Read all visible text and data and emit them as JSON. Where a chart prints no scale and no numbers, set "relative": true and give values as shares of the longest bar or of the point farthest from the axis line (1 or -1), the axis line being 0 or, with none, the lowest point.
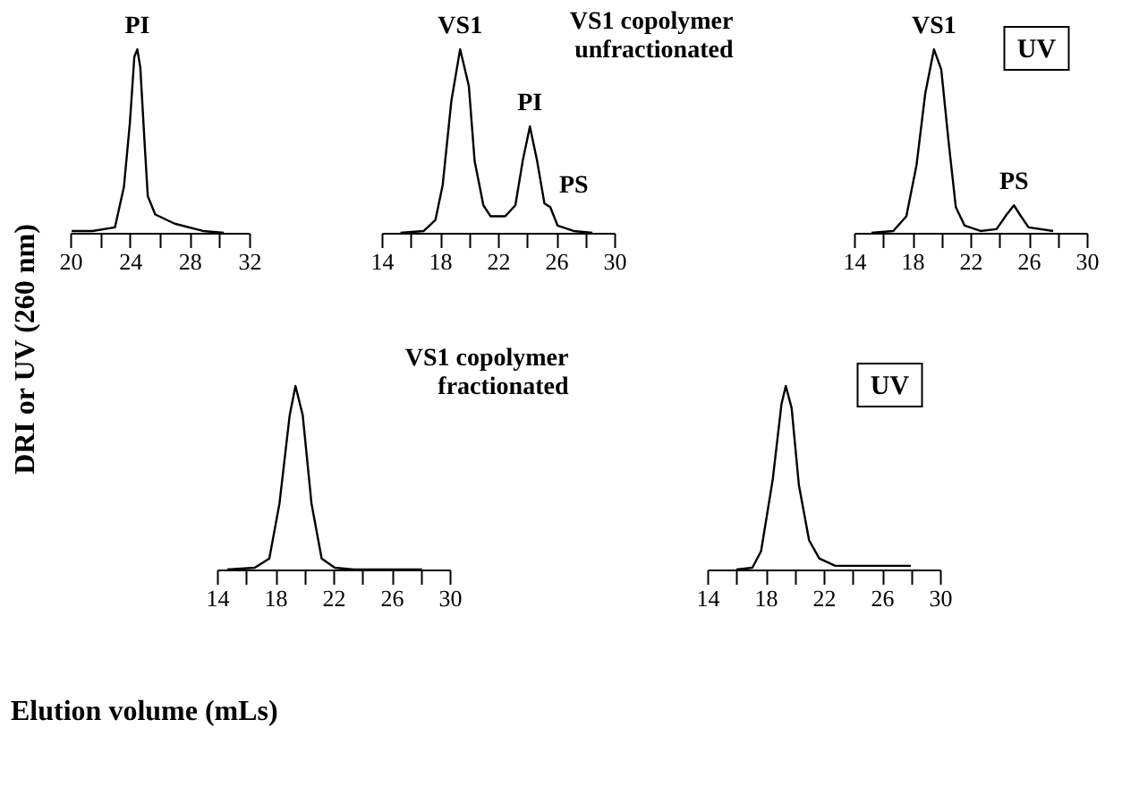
{
  "chart_data": [
    {
      "type": "line",
      "relative": true,
      "tick_labels": "x",
      "ylabel": "DRI or UV (260 nm)",
      "xlabel": "Elution volume (mLs)",
      "xlim": [
        20,
        32
      ],
      "xticks": [
        20,
        {
          "value": 22,
          "label": null
        },
        24,
        {
          "value": 26,
          "label": null
        },
        28,
        {
          "value": 30,
          "label": null
        },
        32
      ],
      "x": [
        20.1,
        21.5,
        23.0,
        23.6,
        24.0,
        24.3,
        24.5,
        24.7,
        25.0,
        25.2,
        25.7,
        27.0,
        28.9,
        30.3
      ],
      "values": [
        0.01,
        0.01,
        0.03,
        0.25,
        0.6,
        0.96,
        1,
        0.9,
        0.47,
        0.2,
        0.1,
        0.05,
        0.01,
        0
      ],
      "annotations": [
        {
          "text": "PI",
          "x": 24.5,
          "y": 1
        }
      ]
    },
    {
      "type": "line",
      "relative": true,
      "tick_labels": "x",
      "title": "VS1 copolymer unfractionated",
      "xlim": [
        14,
        30
      ],
      "xticks": [
        14,
        {
          "value": 16,
          "label": null
        },
        18,
        {
          "value": 20,
          "label": null
        },
        22,
        {
          "value": 24,
          "label": null
        },
        26,
        {
          "value": 28,
          "label": null
        },
        30
      ],
      "x": [
        15.3,
        16.9,
        17.7,
        18.2,
        18.8,
        19.4,
        20.0,
        20.4,
        21.0,
        21.5,
        22.5,
        23.2,
        23.7,
        24.2,
        24.7,
        25.2,
        25.6,
        26.1,
        27.2,
        28.5
      ],
      "values": [
        0,
        0.01,
        0.07,
        0.26,
        0.72,
        1,
        0.8,
        0.39,
        0.15,
        0.09,
        0.09,
        0.15,
        0.39,
        0.58,
        0.39,
        0.16,
        0.14,
        0.04,
        0.01,
        0
      ],
      "annotations": [
        {
          "text": "VS1",
          "x": 19.4,
          "y": 1
        },
        {
          "text": "PI",
          "x": 24.2,
          "y": 0.58
        },
        {
          "text": "PS",
          "x": 25.6,
          "y": 0.14
        }
      ]
    },
    {
      "type": "line",
      "relative": true,
      "tick_labels": "x",
      "xlim": [
        14,
        30
      ],
      "xticks": [
        14,
        {
          "value": 16,
          "label": null
        },
        18,
        {
          "value": 20,
          "label": null
        },
        22,
        {
          "value": 24,
          "label": null
        },
        26,
        {
          "value": 28,
          "label": null
        },
        30
      ],
      "x": [
        15.2,
        16.7,
        17.6,
        18.3,
        18.9,
        19.5,
        20.0,
        20.5,
        21.0,
        21.6,
        22.7,
        23.8,
        24.5,
        25.0,
        25.4,
        26.0,
        27.7
      ],
      "values": [
        0,
        0.01,
        0.09,
        0.37,
        0.76,
        1,
        0.89,
        0.5,
        0.14,
        0.04,
        0.01,
        0.02,
        0.1,
        0.15,
        0.1,
        0.03,
        0.01
      ],
      "annotations": [
        {
          "text": "VS1",
          "x": 19.5,
          "y": 1
        },
        {
          "text": "PS",
          "x": 25.0,
          "y": 0.15
        },
        "UV"
      ]
    },
    {
      "type": "line",
      "relative": true,
      "tick_labels": "x",
      "title": "VS1 copolymer fractionated",
      "xlim": [
        14,
        30
      ],
      "xticks": [
        14,
        {
          "value": 16,
          "label": null
        },
        18,
        {
          "value": 20,
          "label": null
        },
        22,
        {
          "value": 24,
          "label": null
        },
        26,
        {
          "value": 28,
          "label": null
        },
        30
      ],
      "x": [
        14.7,
        16.6,
        17.6,
        18.3,
        19.0,
        19.4,
        19.9,
        20.5,
        21.2,
        22.1,
        23.4,
        28.1
      ],
      "values": [
        0,
        0.01,
        0.06,
        0.36,
        0.84,
        1,
        0.84,
        0.36,
        0.06,
        0.01,
        0,
        0
      ]
    },
    {
      "type": "line",
      "relative": true,
      "tick_labels": "x",
      "xlim": [
        14,
        30
      ],
      "xticks": [
        14,
        {
          "value": 16,
          "label": null
        },
        18,
        {
          "value": 20,
          "label": null
        },
        22,
        {
          "value": 24,
          "label": null
        },
        26,
        {
          "value": 28,
          "label": null
        },
        30
      ],
      "x": [
        16.0,
        17.1,
        17.7,
        18.5,
        19.1,
        19.4,
        19.8,
        20.3,
        21.0,
        21.7,
        22.8,
        28.0
      ],
      "values": [
        0,
        0.01,
        0.1,
        0.49,
        0.9,
        1,
        0.88,
        0.46,
        0.16,
        0.06,
        0.02,
        0.02
      ],
      "annotations": [
        "UV"
      ]
    }
  ]
}
